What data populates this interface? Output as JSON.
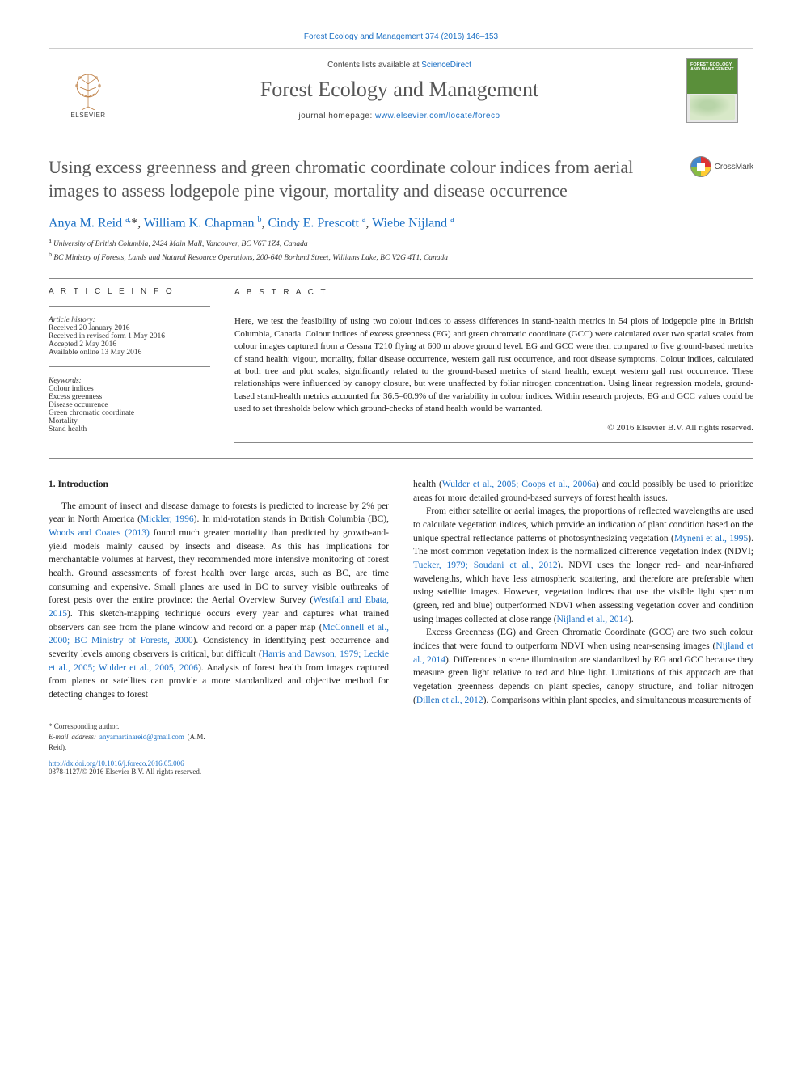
{
  "header": {
    "citation": "Forest Ecology and Management 374 (2016) 146–153",
    "contents_prefix": "Contents lists available at ",
    "contents_link": "ScienceDirect",
    "journal_name": "Forest Ecology and Management",
    "homepage_prefix": "journal homepage: ",
    "homepage_url": "www.elsevier.com/locate/foreco",
    "publisher": "ELSEVIER",
    "cover_title": "FOREST ECOLOGY AND MANAGEMENT"
  },
  "crossmark_label": "CrossMark",
  "article": {
    "title": "Using excess greenness and green chromatic coordinate colour indices from aerial images to assess lodgepole pine vigour, mortality and disease occurrence",
    "authors_html": "Anya M. Reid <sup>a,</sup>*, William K. Chapman <sup>b</sup>, Cindy E. Prescott <sup>a</sup>, Wiebe Nijland <sup>a</sup>",
    "affiliations": [
      {
        "sup": "a",
        "text": "University of British Columbia, 2424 Main Mall, Vancouver, BC V6T 1Z4, Canada"
      },
      {
        "sup": "b",
        "text": "BC Ministry of Forests, Lands and Natural Resource Operations, 200-640 Borland Street, Williams Lake, BC V2G 4T1, Canada"
      }
    ]
  },
  "info": {
    "heading": "A R T I C L E  I N F O",
    "history_label": "Article history:",
    "history": [
      "Received 20 January 2016",
      "Received in revised form 1 May 2016",
      "Accepted 2 May 2016",
      "Available online 13 May 2016"
    ],
    "keywords_label": "Keywords:",
    "keywords": [
      "Colour indices",
      "Excess greenness",
      "Disease occurrence",
      "Green chromatic coordinate",
      "Mortality",
      "Stand health"
    ]
  },
  "abstract": {
    "heading": "A B S T R A C T",
    "text": "Here, we test the feasibility of using two colour indices to assess differences in stand-health metrics in 54 plots of lodgepole pine in British Columbia, Canada. Colour indices of excess greenness (EG) and green chromatic coordinate (GCC) were calculated over two spatial scales from colour images captured from a Cessna T210 flying at 600 m above ground level. EG and GCC were then compared to five ground-based metrics of stand health: vigour, mortality, foliar disease occurrence, western gall rust occurrence, and root disease symptoms. Colour indices, calculated at both tree and plot scales, significantly related to the ground-based metrics of stand health, except western gall rust occurrence. These relationships were influenced by canopy closure, but were unaffected by foliar nitrogen concentration. Using linear regression models, ground-based stand-health metrics accounted for 36.5–60.9% of the variability in colour indices. Within research projects, EG and GCC values could be used to set thresholds below which ground-checks of stand health would be warranted.",
    "copyright": "© 2016 Elsevier B.V. All rights reserved."
  },
  "body": {
    "section_number": "1.",
    "section_title": "Introduction",
    "left_p1_a": "The amount of insect and disease damage to forests is predicted to increase by 2% per year in North America (",
    "left_p1_link1": "Mickler, 1996",
    "left_p1_b": "). In mid-rotation stands in British Columbia (BC), ",
    "left_p1_link2": "Woods and Coates (2013)",
    "left_p1_c": " found much greater mortality than predicted by growth-and-yield models mainly caused by insects and disease. As this has implications for merchantable volumes at harvest, they recommended more intensive monitoring of forest health. Ground assessments of forest health over large areas, such as BC, are time consuming and expensive. Small planes are used in BC to survey visible outbreaks of forest pests over the entire province: the Aerial Overview Survey (",
    "left_p1_link3": "Westfall and Ebata, 2015",
    "left_p1_d": "). This sketch-mapping technique occurs every year and captures what trained observers can see from the plane window and record on a paper map (",
    "left_p1_link4": "McConnell et al., 2000; BC Ministry of Forests, 2000",
    "left_p1_e": "). Consistency in identifying pest occurrence and severity levels among observers is critical, but difficult (",
    "left_p1_link5": "Harris and Dawson, 1979; Leckie et al., 2005; Wulder et al., 2005, 2006",
    "left_p1_f": "). Analysis of forest health from images captured from planes or satellites can provide a more standardized and objective method for detecting changes to forest",
    "right_p1_a": "health (",
    "right_p1_link1": "Wulder et al., 2005; Coops et al., 2006a",
    "right_p1_b": ") and could possibly be used to prioritize areas for more detailed ground-based surveys of forest health issues.",
    "right_p2_a": "From either satellite or aerial images, the proportions of reflected wavelengths are used to calculate vegetation indices, which provide an indication of plant condition based on the unique spectral reflectance patterns of photosynthesizing vegetation (",
    "right_p2_link1": "Myneni et al., 1995",
    "right_p2_b": "). The most common vegetation index is the normalized difference vegetation index (NDVI; ",
    "right_p2_link2": "Tucker, 1979; Soudani et al., 2012",
    "right_p2_c": "). NDVI uses the longer red- and near-infrared wavelengths, which have less atmospheric scattering, and therefore are preferable when using satellite images. However, vegetation indices that use the visible light spectrum (green, red and blue) outperformed NDVI when assessing vegetation cover and condition using images collected at close range (",
    "right_p2_link3": "Nijland et al., 2014",
    "right_p2_d": ").",
    "right_p3_a": "Excess Greenness (EG) and Green Chromatic Coordinate (GCC) are two such colour indices that were found to outperform NDVI when using near-sensing images (",
    "right_p3_link1": "Nijland et al., 2014",
    "right_p3_b": "). Differences in scene illumination are standardized by EG and GCC because they measure green light relative to red and blue light. Limitations of this approach are that vegetation greenness depends on plant species, canopy structure, and foliar nitrogen (",
    "right_p3_link2": "Dillen et al., 2012",
    "right_p3_c": "). Comparisons within plant species, and simultaneous measurements of"
  },
  "footnotes": {
    "corresponding": "* Corresponding author.",
    "email_label": "E-mail address: ",
    "email": "anyamartinareid@gmail.com",
    "email_suffix": " (A.M. Reid)."
  },
  "footer": {
    "doi": "http://dx.doi.org/10.1016/j.foreco.2016.05.006",
    "issn_line": "0378-1127/© 2016 Elsevier B.V. All rights reserved."
  }
}
